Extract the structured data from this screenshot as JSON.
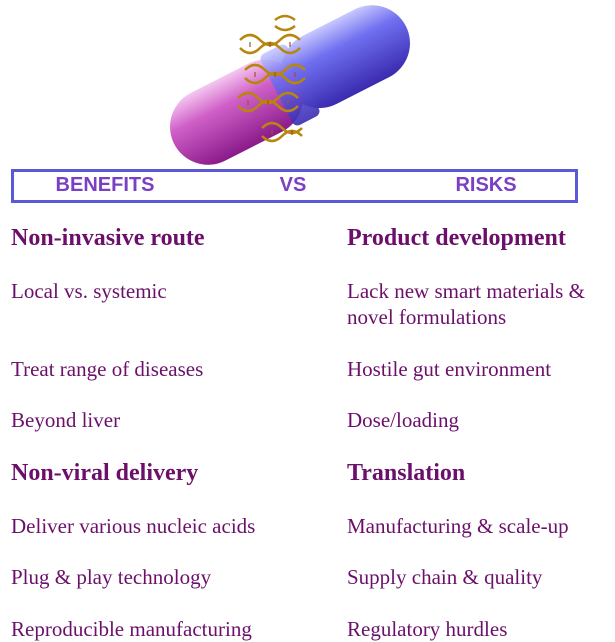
{
  "banner": {
    "left": "BENEFITS",
    "middle": "VS",
    "right": "RISKS"
  },
  "benefits": [
    {
      "heading": "Non-invasive route",
      "items": [
        "Local vs. systemic",
        "Treat range of diseases",
        "Beyond liver"
      ]
    },
    {
      "heading": "Non-viral delivery",
      "items": [
        "Deliver various nucleic acids",
        "Plug & play technology",
        "Reproducible manufacturing"
      ]
    }
  ],
  "risks": [
    {
      "heading": "Product development",
      "items": [
        "Lack new smart materials & novel formulations",
        "Hostile gut environment",
        "Dose/loading"
      ]
    },
    {
      "heading": "Translation",
      "items": [
        "Manufacturing & scale-up",
        "Supply chain & quality",
        "Regulatory hurdles"
      ]
    }
  ]
}
